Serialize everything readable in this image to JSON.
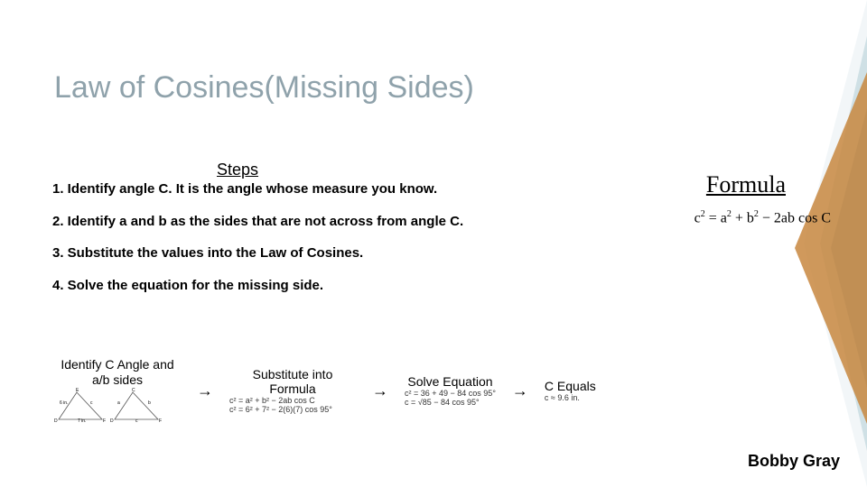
{
  "title": "Law of Cosines(Missing Sides)",
  "title_color": "#8fa2ab",
  "steps_heading": "Steps",
  "steps": [
    "1.  Identify angle C. It is the angle whose measure you know.",
    "2. Identify a and b as the sides that are not across from angle C.",
    "3. Substitute the values into the Law of Cosines.",
    "4. Solve the equation for the missing side."
  ],
  "formula_heading": "Formula",
  "formula": {
    "lhs": "c",
    "eq_html": "c<sup>2</sup> = a<sup>2</sup> + b<sup>2</sup> − 2ab cos C"
  },
  "flow": {
    "step1_label": "Identify C Angle and a/b sides",
    "step2_label": "Substitute into Formula",
    "step2_math": [
      "c² = a² + b² − 2ab cos C",
      "c² = 6² + 7² − 2(6)(7) cos 95°"
    ],
    "step3_label": "Solve Equation",
    "step3_math": [
      "c² = 36 + 49 − 84 cos 95°",
      "c = √85 − 84 cos 95°"
    ],
    "step4_label": "C Equals",
    "step4_math": [
      "c ≈ 9.6 in."
    ]
  },
  "diagram": {
    "vertices": [
      "D",
      "E",
      "F"
    ],
    "side_labels": [
      "6 in.",
      "c",
      "7 in."
    ],
    "known_angle": "95°",
    "stroke": "#555555",
    "fill": "#f9f9f9"
  },
  "decor": {
    "colors": [
      "#c8873f",
      "#78a5b6",
      "#c0d7dd",
      "#e6eef1"
    ],
    "opacities": [
      0.9,
      0.6,
      0.7,
      0.5
    ]
  },
  "author": "Bobby Gray"
}
